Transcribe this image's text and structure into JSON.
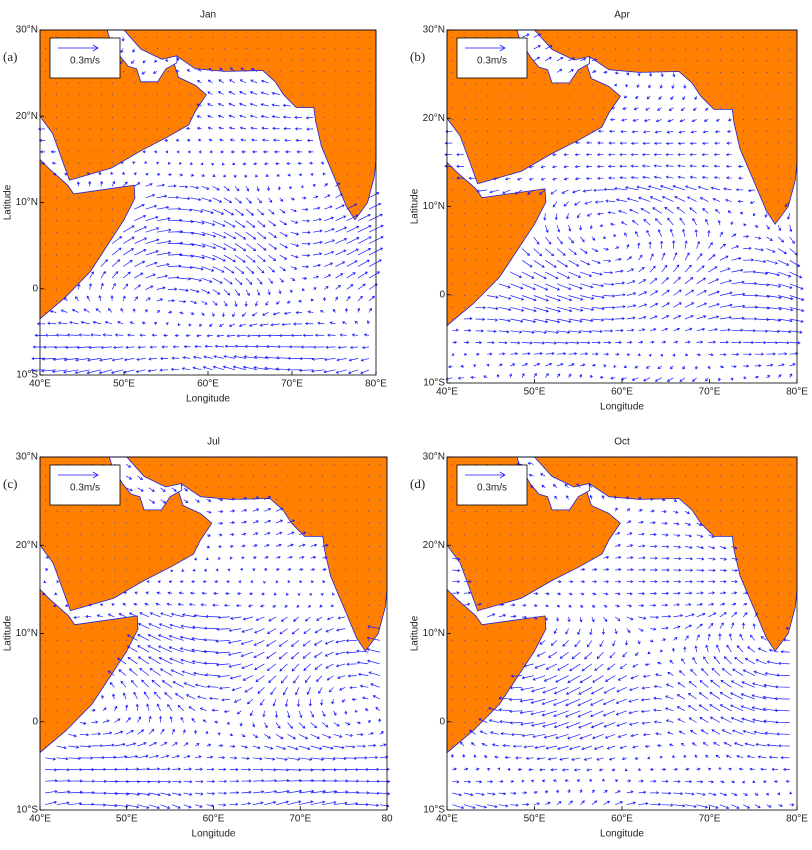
{
  "chart_data": [
    {
      "type": "quiver",
      "label": "(a)",
      "title": "Jan",
      "xlabel": "Longitude",
      "ylabel": "Latitude",
      "legend": "0.3m/s",
      "xlim": [
        40,
        80
      ],
      "ylim": [
        -10,
        30
      ],
      "xticks": [
        {
          "value": 40,
          "label": "40°E"
        },
        {
          "value": 50,
          "label": "50°E"
        },
        {
          "value": 60,
          "label": "60°E"
        },
        {
          "value": 70,
          "label": "70°E"
        },
        {
          "value": 80,
          "label": "80°E"
        }
      ],
      "yticks": [
        {
          "value": -10,
          "label": "10°S"
        },
        0,
        {
          "value": 10,
          "label": "10°N"
        },
        {
          "value": 20,
          "label": "20°N"
        },
        {
          "value": 30,
          "label": "30°N"
        }
      ]
    },
    {
      "type": "quiver",
      "label": "(b)",
      "title": "Apr",
      "xlabel": "Longitude",
      "ylabel": "Latitude",
      "legend": "0.3m/s",
      "xlim": [
        40,
        80
      ],
      "ylim": [
        -10,
        30
      ],
      "xticks": [
        {
          "value": 40,
          "label": "40°E"
        },
        {
          "value": 50,
          "label": "50°E"
        },
        {
          "value": 60,
          "label": "60°E"
        },
        {
          "value": 70,
          "label": "70°E"
        },
        {
          "value": 80,
          "label": "80°E"
        }
      ],
      "yticks": [
        {
          "value": -10,
          "label": "10°S"
        },
        0,
        {
          "value": 10,
          "label": "10°N"
        },
        {
          "value": 20,
          "label": "20°N"
        },
        {
          "value": 30,
          "label": "30°N"
        }
      ]
    },
    {
      "type": "quiver",
      "label": "(c)",
      "title": "Jul",
      "xlabel": "Longitude",
      "ylabel": "Latitude",
      "legend": "0.3m/s",
      "xlim": [
        40,
        80
      ],
      "ylim": [
        -10,
        30
      ],
      "xticks": [
        {
          "value": 40,
          "label": "40°E"
        },
        {
          "value": 50,
          "label": "50°E"
        },
        {
          "value": 60,
          "label": "60°E"
        },
        {
          "value": 70,
          "label": "70°E"
        },
        {
          "value": 80,
          "label": "80"
        }
      ],
      "yticks": [
        {
          "value": -10,
          "label": "10°S"
        },
        0,
        {
          "value": 10,
          "label": "10°N"
        },
        {
          "value": 20,
          "label": "20°N"
        },
        {
          "value": 30,
          "label": "30°N"
        }
      ]
    },
    {
      "type": "quiver",
      "label": "(d)",
      "title": "Oct",
      "xlabel": "Longitude",
      "ylabel": "Latitude",
      "legend": "0.3m/s",
      "xlim": [
        40,
        80
      ],
      "ylim": [
        -10,
        30
      ],
      "xticks": [
        {
          "value": 40,
          "label": "40°E"
        },
        {
          "value": 50,
          "label": "50°E"
        },
        {
          "value": 60,
          "label": "60°E"
        },
        {
          "value": 70,
          "label": "70°E"
        },
        {
          "value": 80,
          "label": "80°E"
        }
      ],
      "yticks": [
        {
          "value": -10,
          "label": "10°S"
        },
        0,
        {
          "value": 10,
          "label": "10°N"
        },
        {
          "value": 20,
          "label": "20°N"
        },
        {
          "value": 30,
          "label": "30°N"
        }
      ]
    }
  ]
}
